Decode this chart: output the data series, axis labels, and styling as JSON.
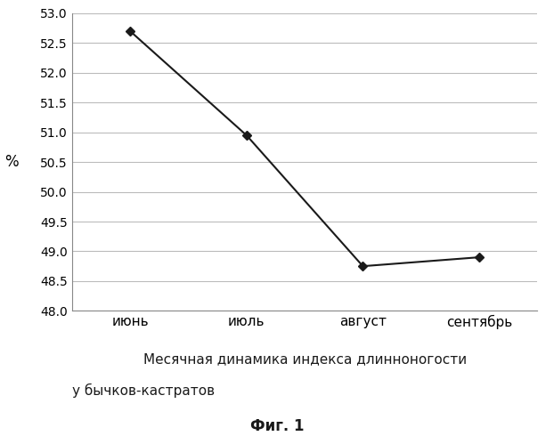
{
  "x_labels": [
    "июнь",
    "июль",
    "август",
    "сентябрь"
  ],
  "y_values": [
    52.7,
    50.95,
    48.75,
    48.9
  ],
  "ylabel": "%",
  "ylim": [
    48.0,
    53.0
  ],
  "yticks": [
    48.0,
    48.5,
    49.0,
    49.5,
    50.0,
    50.5,
    51.0,
    51.5,
    52.0,
    52.5,
    53.0
  ],
  "line_color": "#1a1a1a",
  "marker": "D",
  "marker_size": 5,
  "marker_color": "#1a1a1a",
  "caption_line1": "Месячная динамика индекса длинноногости",
  "caption_line2": "у бычков-кастратов",
  "fig_label": "Фиг. 1",
  "background_color": "#ffffff",
  "grid_color": "#bbbbbb",
  "spine_color": "#888888"
}
